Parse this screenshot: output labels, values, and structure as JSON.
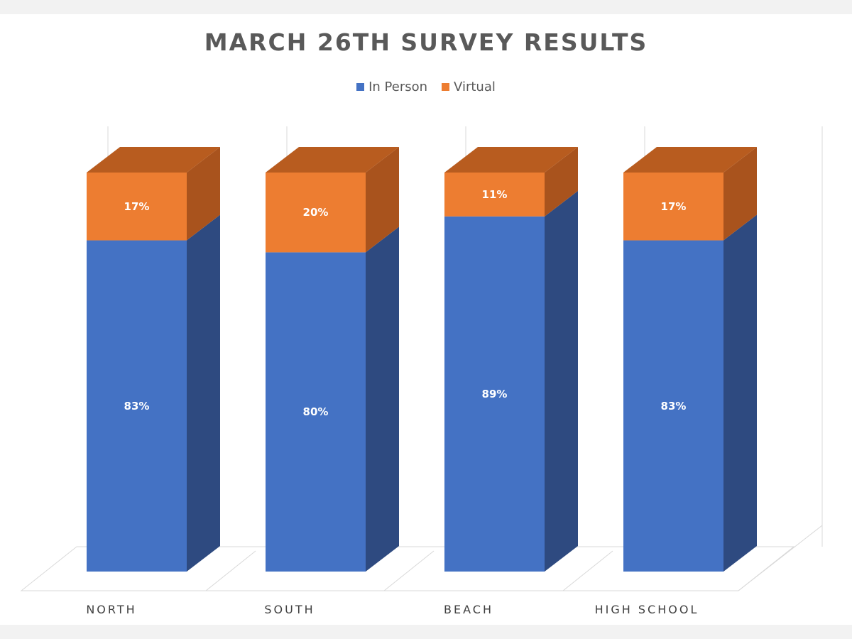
{
  "chart_data": {
    "type": "bar",
    "stacked": true,
    "three_d": true,
    "title": "MARCH 26TH SURVEY RESULTS",
    "categories": [
      "NORTH",
      "SOUTH",
      "BEACH",
      "HIGH SCHOOL"
    ],
    "series": [
      {
        "name": "In Person",
        "color": "#4472c4",
        "side_color": "#2e4a80",
        "values": [
          83,
          80,
          89,
          83
        ],
        "labels": [
          "83%",
          "80%",
          "89%",
          "83%"
        ]
      },
      {
        "name": "Virtual",
        "color": "#ed7d31",
        "side_color": "#a9531d",
        "top_color": "#b85c1f",
        "values": [
          17,
          20,
          11,
          17
        ],
        "labels": [
          "17%",
          "20%",
          "11%",
          "17%"
        ]
      }
    ],
    "ylim": [
      0,
      100
    ],
    "legend_position": "top",
    "grid": true
  }
}
